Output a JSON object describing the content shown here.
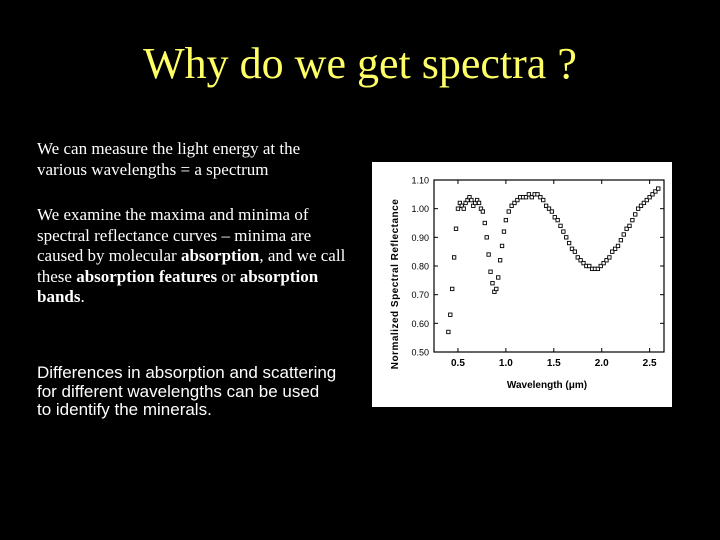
{
  "slide": {
    "title": "Why do we get spectra ?",
    "p1": "We can measure the light energy at the various wavelengths = a spectrum",
    "p2": {
      "t1": "We examine the maxima and minima of spectral reflectance curves – minima are caused by molecular ",
      "b1": "absorption",
      "t2": ", and we call these ",
      "b2": "absorption features",
      "t3": " or ",
      "b3": "absorption bands",
      "t4": "."
    },
    "p3": "Differences in absorption and scattering for different wavelengths can be used to identify the minerals."
  },
  "chart_data": {
    "type": "scatter",
    "xlabel": "Wavelength  (μm)",
    "ylabel": "Normalized  Spectral  Reflectance",
    "xlim": [
      0.25,
      2.65
    ],
    "ylim": [
      0.5,
      1.1
    ],
    "xticks": [
      "0.5",
      "1.0",
      "1.5",
      "2.0",
      "2.5"
    ],
    "yticks": [
      "0.50",
      "0.60",
      "0.70",
      "0.80",
      "0.90",
      "1.00",
      "1.10"
    ],
    "series": [
      {
        "x": [
          0.4,
          0.42,
          0.44,
          0.46,
          0.48,
          0.5,
          0.52,
          0.54,
          0.56,
          0.58,
          0.6,
          0.62,
          0.64,
          0.66,
          0.68,
          0.7,
          0.72,
          0.74,
          0.76,
          0.78,
          0.8,
          0.82,
          0.84,
          0.86,
          0.88,
          0.9,
          0.92,
          0.94,
          0.96,
          0.98,
          1.0,
          1.03,
          1.06,
          1.09,
          1.12,
          1.15,
          1.18,
          1.21,
          1.24,
          1.27,
          1.3,
          1.33,
          1.36,
          1.39,
          1.42,
          1.45,
          1.48,
          1.51,
          1.54,
          1.57,
          1.6,
          1.63,
          1.66,
          1.69,
          1.72,
          1.75,
          1.78,
          1.81,
          1.84,
          1.87,
          1.9,
          1.93,
          1.96,
          1.99,
          2.02,
          2.05,
          2.08,
          2.11,
          2.14,
          2.17,
          2.2,
          2.23,
          2.26,
          2.29,
          2.32,
          2.35,
          2.38,
          2.41,
          2.44,
          2.47,
          2.5,
          2.53,
          2.56,
          2.59
        ],
        "y": [
          0.57,
          0.63,
          0.72,
          0.83,
          0.93,
          1.0,
          1.02,
          1.01,
          1.0,
          1.02,
          1.03,
          1.04,
          1.03,
          1.01,
          1.02,
          1.03,
          1.02,
          1.0,
          0.99,
          0.95,
          0.9,
          0.84,
          0.78,
          0.74,
          0.71,
          0.72,
          0.76,
          0.82,
          0.87,
          0.92,
          0.96,
          0.99,
          1.01,
          1.02,
          1.03,
          1.04,
          1.04,
          1.04,
          1.05,
          1.04,
          1.05,
          1.05,
          1.04,
          1.03,
          1.01,
          1.0,
          0.99,
          0.97,
          0.96,
          0.94,
          0.92,
          0.9,
          0.88,
          0.86,
          0.85,
          0.83,
          0.82,
          0.81,
          0.8,
          0.8,
          0.79,
          0.79,
          0.79,
          0.8,
          0.81,
          0.82,
          0.83,
          0.85,
          0.86,
          0.87,
          0.89,
          0.91,
          0.93,
          0.94,
          0.96,
          0.98,
          1.0,
          1.01,
          1.02,
          1.03,
          1.04,
          1.05,
          1.06,
          1.07
        ]
      }
    ]
  }
}
